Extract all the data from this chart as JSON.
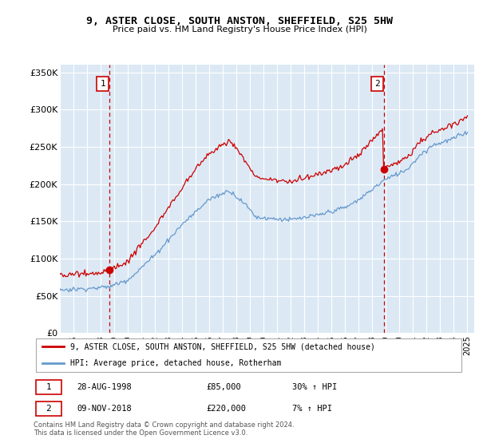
{
  "title1": "9, ASTER CLOSE, SOUTH ANSTON, SHEFFIELD, S25 5HW",
  "title2": "Price paid vs. HM Land Registry's House Price Index (HPI)",
  "yticks": [
    0,
    50000,
    100000,
    150000,
    200000,
    250000,
    300000,
    350000
  ],
  "ytick_labels": [
    "£0",
    "£50K",
    "£100K",
    "£150K",
    "£200K",
    "£250K",
    "£300K",
    "£350K"
  ],
  "bg_color": "#dce9f5",
  "grid_color": "#ffffff",
  "sale1_x": 1998.65,
  "sale1_y": 85000,
  "sale2_x": 2018.85,
  "sale2_y": 220000,
  "sale1_label": "1",
  "sale2_label": "2",
  "legend_line1": "9, ASTER CLOSE, SOUTH ANSTON, SHEFFIELD, S25 5HW (detached house)",
  "legend_line2": "HPI: Average price, detached house, Rotherham",
  "footer1": "Contains HM Land Registry data © Crown copyright and database right 2024.",
  "footer2": "This data is licensed under the Open Government Licence v3.0.",
  "table_row1": [
    "1",
    "28-AUG-1998",
    "£85,000",
    "30% ↑ HPI"
  ],
  "table_row2": [
    "2",
    "09-NOV-2018",
    "£220,000",
    "7% ↑ HPI"
  ],
  "red_color": "#cc0000",
  "blue_color": "#6699cc",
  "vline_color": "#cc0000",
  "xlim_left": 1995,
  "xlim_right": 2025.5,
  "ylim_top": 360000
}
